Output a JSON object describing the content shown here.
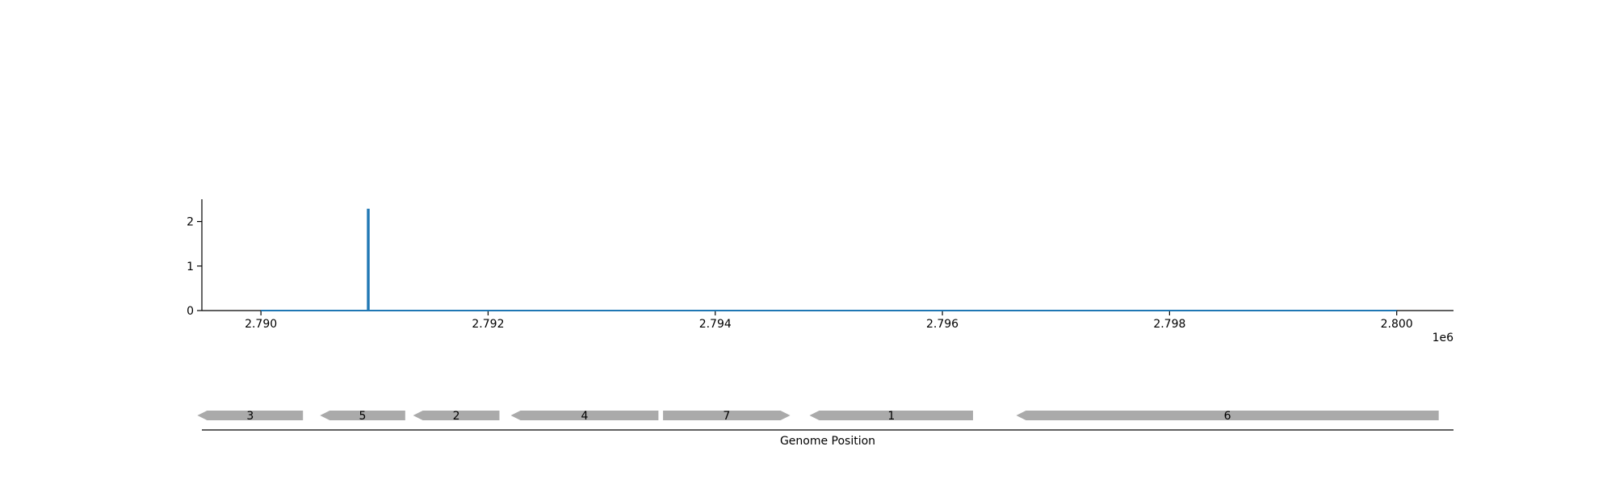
{
  "chart_data": [
    {
      "type": "line",
      "title": "",
      "xlabel": "",
      "ylabel": "",
      "x_offset_label": "1e6",
      "xlim": [
        2.78948,
        2.8005
      ],
      "ylim": [
        0,
        2.5
      ],
      "x_ticks": [
        2.79,
        2.792,
        2.794,
        2.796,
        2.798,
        2.8
      ],
      "x_tick_labels": [
        "2.790",
        "2.792",
        "2.794",
        "2.796",
        "2.798",
        "2.800"
      ],
      "y_ticks": [
        0,
        1,
        2
      ],
      "y_tick_labels": [
        "0",
        "1",
        "2"
      ],
      "grid": false,
      "series_color": "#1f77b4",
      "series": [
        {
          "x": [
            2.79,
            2.79094,
            2.79094,
            2.79095,
            2.79095,
            2.8
          ],
          "y": [
            0,
            0,
            2.27,
            2.27,
            0,
            0
          ]
        }
      ]
    },
    {
      "type": "gene-track",
      "xlabel": "Genome Position",
      "feature_color": "#aaaaaa",
      "genes": [
        {
          "label": "3",
          "start": 2.78944,
          "end": 2.79037,
          "strand": "-"
        },
        {
          "label": "5",
          "start": 2.79052,
          "end": 2.79127,
          "strand": "-"
        },
        {
          "label": "2",
          "start": 2.79134,
          "end": 2.7921,
          "strand": "-"
        },
        {
          "label": "4",
          "start": 2.7922,
          "end": 2.7935,
          "strand": "-"
        },
        {
          "label": "7",
          "start": 2.79354,
          "end": 2.79466,
          "strand": "+"
        },
        {
          "label": "1",
          "start": 2.79483,
          "end": 2.79627,
          "strand": "-"
        },
        {
          "label": "6",
          "start": 2.79665,
          "end": 2.80037,
          "strand": "-"
        }
      ]
    }
  ]
}
